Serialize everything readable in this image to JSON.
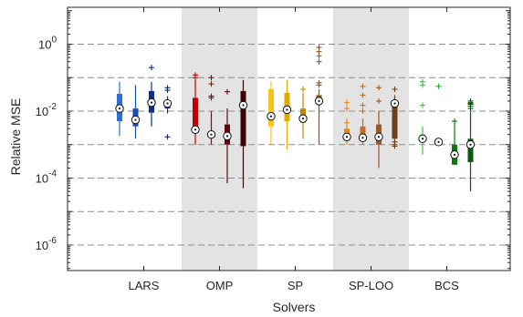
{
  "chart_data": {
    "type": "box",
    "xlabel": "Solvers",
    "ylabel": "Relative MSE",
    "yscale": "log",
    "ylim": [
      1e-07,
      10
    ],
    "y_ticks": [
      {
        "base": "10",
        "exp": "0",
        "value": 1
      },
      {
        "base": "10",
        "exp": "-2",
        "value": 0.01
      },
      {
        "base": "10",
        "exp": "-4",
        "value": 0.0001
      },
      {
        "base": "10",
        "exp": "-6",
        "value": 1e-06
      }
    ],
    "grid_lines": [
      1,
      0.1,
      0.01,
      0.001,
      0.0001,
      1e-05,
      1e-06
    ],
    "grid": "horizontal dashed",
    "categories": [
      "LARS",
      "OMP",
      "SP",
      "SP-LOO",
      "BCS"
    ],
    "shaded_groups": [
      1,
      3
    ],
    "group_colors": [
      [
        "#2c6fd6",
        "#1a4fb0",
        "#0e2f8a",
        "#0b2a78"
      ],
      [
        "#c00000",
        "#8b0a0a",
        "#5a0a0a",
        "#3a0505"
      ],
      [
        "#f5c518",
        "#e0a800",
        "#c08a00",
        "#8a5a00"
      ],
      [
        "#e08a1a",
        "#c07020",
        "#9a5a28",
        "#6a4020"
      ],
      [
        "#33cc33",
        "#22aa22",
        "#117711",
        "#0a5a0a"
      ]
    ],
    "boxes": [
      {
        "group": 0,
        "min": 0.0018,
        "q1": 0.005,
        "median": 0.012,
        "q3": 0.033,
        "max": 0.075,
        "outliers": []
      },
      {
        "group": 0,
        "min": 0.0015,
        "q1": 0.0035,
        "median": 0.0055,
        "q3": 0.012,
        "max": 0.06,
        "outliers": []
      },
      {
        "group": 0,
        "min": 0.0035,
        "q1": 0.009,
        "median": 0.018,
        "q3": 0.04,
        "max": 0.075,
        "outliers": [
          0.2
        ]
      },
      {
        "group": 0,
        "min": 0.0085,
        "q1": 0.012,
        "median": 0.017,
        "q3": 0.02,
        "max": 0.028,
        "outliers": [
          0.05,
          0.042,
          0.0017
        ]
      },
      {
        "group": 1,
        "min": 0.001,
        "q1": 0.0028,
        "median": 0.0028,
        "q3": 0.025,
        "max": 0.085,
        "outliers": [
          0.1,
          0.12
        ]
      },
      {
        "group": 1,
        "min": 0.001,
        "q1": 0.0018,
        "median": 0.002,
        "q3": 0.002,
        "max": 0.01,
        "outliers": [
          0.025,
          0.028,
          0.065,
          0.1
        ]
      },
      {
        "group": 1,
        "min": 7e-05,
        "q1": 0.001,
        "median": 0.0018,
        "q3": 0.004,
        "max": 0.012,
        "outliers": [
          0.038
        ]
      },
      {
        "group": 1,
        "min": 5e-05,
        "q1": 0.0009,
        "median": 0.015,
        "q3": 0.04,
        "max": 0.085,
        "outliers": []
      },
      {
        "group": 2,
        "min": 0.001,
        "q1": 0.0035,
        "median": 0.007,
        "q3": 0.045,
        "max": 0.08,
        "outliers": []
      },
      {
        "group": 2,
        "min": 0.0007,
        "q1": 0.005,
        "median": 0.011,
        "q3": 0.035,
        "max": 0.085,
        "outliers": []
      },
      {
        "group": 2,
        "min": 0.0015,
        "q1": 0.0045,
        "median": 0.006,
        "q3": 0.012,
        "max": 0.035,
        "outliers": [
          0.045
        ]
      },
      {
        "group": 2,
        "min": 0.001,
        "q1": 0.018,
        "median": 0.02,
        "q3": 0.03,
        "max": 0.045,
        "outliers": [
          0.06,
          0.07,
          0.3,
          0.45,
          0.6,
          0.8
        ]
      },
      {
        "group": 3,
        "min": 0.001,
        "q1": 0.0015,
        "median": 0.0017,
        "q3": 0.003,
        "max": 0.006,
        "outliers": [
          0.012,
          0.018,
          0.0045
        ]
      },
      {
        "group": 3,
        "min": 0.001,
        "q1": 0.0014,
        "median": 0.0016,
        "q3": 0.0035,
        "max": 0.006,
        "outliers": [
          0.01,
          0.015,
          0.03,
          0.055
        ]
      },
      {
        "group": 3,
        "min": 0.0002,
        "q1": 0.001,
        "median": 0.0017,
        "q3": 0.004,
        "max": 0.01,
        "outliers": [
          0.02,
          0.05
        ]
      },
      {
        "group": 3,
        "min": 0.0011,
        "q1": 0.0015,
        "median": 0.017,
        "q3": 0.02,
        "max": 0.03,
        "outliers": [
          0.045,
          0.0012,
          0.001,
          0.0009
        ]
      },
      {
        "group": 4,
        "min": 0.0005,
        "q1": 0.0013,
        "median": 0.0015,
        "q3": 0.002,
        "max": 0.0035,
        "outliers": [
          0.015,
          0.06,
          0.075
        ]
      },
      {
        "group": 4,
        "min": 0.0012,
        "q1": 0.0012,
        "median": 0.0012,
        "q3": 0.0013,
        "max": 0.0013,
        "outliers": [
          0.055
        ]
      },
      {
        "group": 4,
        "min": 0.00025,
        "q1": 0.00025,
        "median": 0.0005,
        "q3": 0.001,
        "max": 0.0045,
        "outliers": [
          0.005
        ]
      },
      {
        "group": 4,
        "min": 4e-05,
        "q1": 0.0003,
        "median": 0.001,
        "q3": 0.0015,
        "max": 0.0095,
        "outliers": [
          0.012,
          0.014,
          0.016,
          0.017,
          0.018,
          0.02
        ]
      }
    ]
  }
}
